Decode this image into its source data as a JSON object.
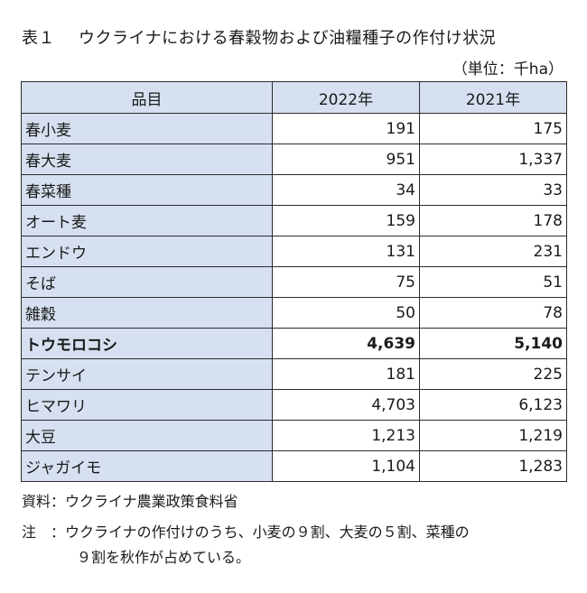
{
  "title": {
    "number": "表１",
    "text": "ウクライナにおける春穀物および油糧種子の作付け状況"
  },
  "unit": "（単位：千ha）",
  "table": {
    "headers": [
      "品目",
      "2022年",
      "2021年"
    ],
    "rows": [
      {
        "name": "春小麦",
        "v2022": "191",
        "v2021": "175"
      },
      {
        "name": "春大麦",
        "v2022": "951",
        "v2021": "1,337"
      },
      {
        "name": "春菜種",
        "v2022": "34",
        "v2021": "33"
      },
      {
        "name": "オート麦",
        "v2022": "159",
        "v2021": "178"
      },
      {
        "name": "エンドウ",
        "v2022": "131",
        "v2021": "231"
      },
      {
        "name": "そば",
        "v2022": "75",
        "v2021": "51"
      },
      {
        "name": "雑穀",
        "v2022": "50",
        "v2021": "78"
      },
      {
        "name": "トウモロコシ",
        "v2022": "4,639",
        "v2021": "5,140"
      },
      {
        "name": "テンサイ",
        "v2022": "181",
        "v2021": "225"
      },
      {
        "name": "ヒマワリ",
        "v2022": "4,703",
        "v2021": "6,123"
      },
      {
        "name": "大豆",
        "v2022": "1,213",
        "v2021": "1,219"
      },
      {
        "name": "ジャガイモ",
        "v2022": "1,104",
        "v2021": "1,283"
      }
    ]
  },
  "source": "資料：ウクライナ農業政策食料省",
  "note": {
    "line1": "注　：ウクライナの作付けのうち、小麦の９割、大麦の５割、菜種の",
    "line2": "９割を秋作が占めている。"
  },
  "colors": {
    "header_fill": "#d6e0f0",
    "border": "#2b2b2b"
  }
}
